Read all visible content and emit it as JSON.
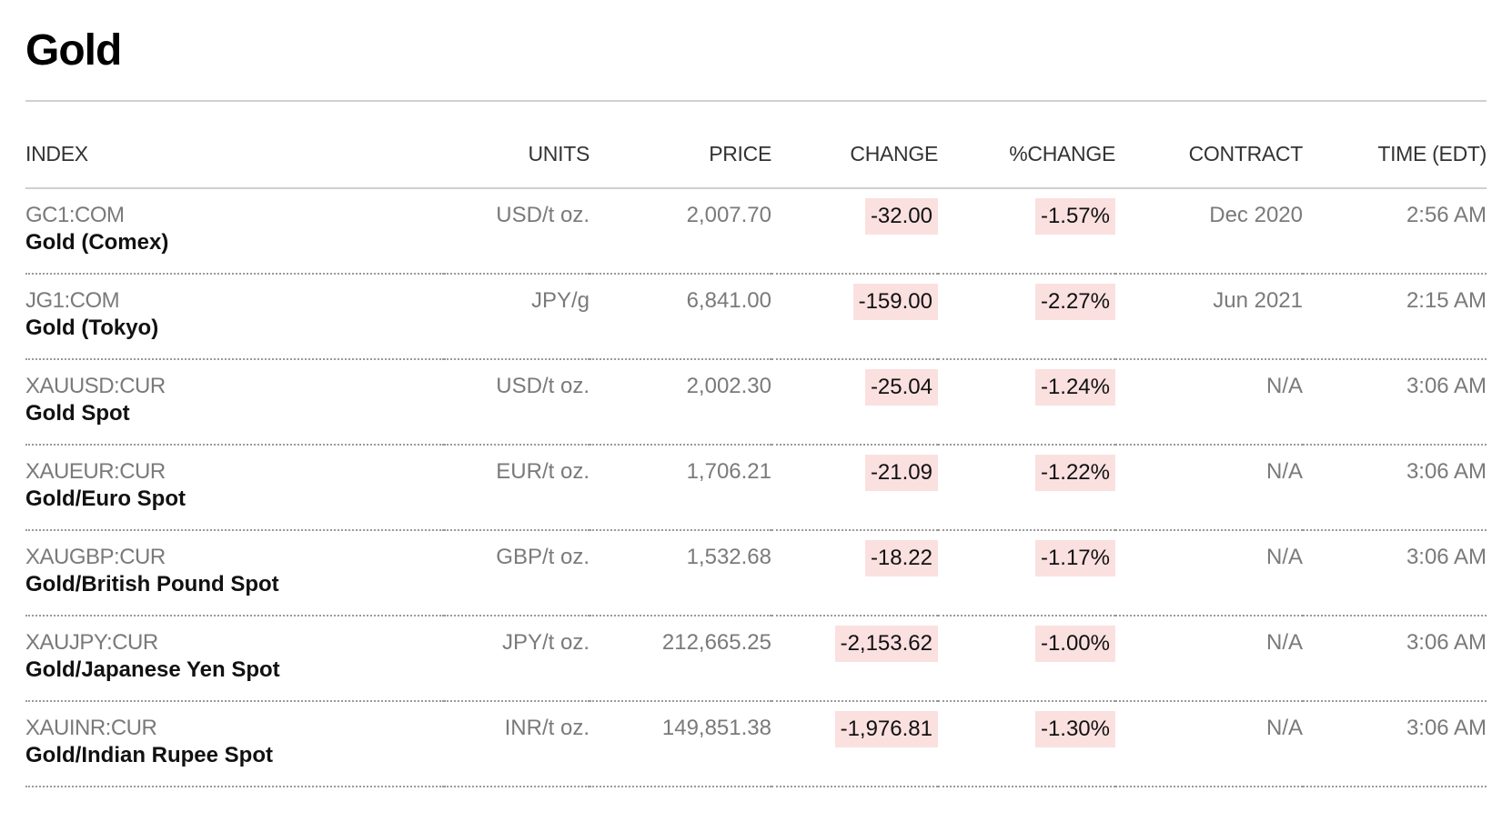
{
  "page": {
    "title": "Gold"
  },
  "table": {
    "headers": {
      "index": "INDEX",
      "units": "UNITS",
      "price": "PRICE",
      "change": "CHANGE",
      "pct_change": "%CHANGE",
      "contract": "CONTRACT",
      "time": "TIME (EDT)"
    },
    "rows": [
      {
        "ticker": "GC1:COM",
        "name": "Gold (Comex)",
        "units": "USD/t oz.",
        "price": "2,007.70",
        "change": "-32.00",
        "pct_change": "-1.57%",
        "contract": "Dec 2020",
        "time": "2:56 AM"
      },
      {
        "ticker": "JG1:COM",
        "name": "Gold (Tokyo)",
        "units": "JPY/g",
        "price": "6,841.00",
        "change": "-159.00",
        "pct_change": "-2.27%",
        "contract": "Jun 2021",
        "time": "2:15 AM"
      },
      {
        "ticker": "XAUUSD:CUR",
        "name": "Gold Spot",
        "units": "USD/t oz.",
        "price": "2,002.30",
        "change": "-25.04",
        "pct_change": "-1.24%",
        "contract": "N/A",
        "time": "3:06 AM"
      },
      {
        "ticker": "XAUEUR:CUR",
        "name": "Gold/Euro Spot",
        "units": "EUR/t oz.",
        "price": "1,706.21",
        "change": "-21.09",
        "pct_change": "-1.22%",
        "contract": "N/A",
        "time": "3:06 AM"
      },
      {
        "ticker": "XAUGBP:CUR",
        "name": "Gold/British Pound Spot",
        "units": "GBP/t oz.",
        "price": "1,532.68",
        "change": "-18.22",
        "pct_change": "-1.17%",
        "contract": "N/A",
        "time": "3:06 AM"
      },
      {
        "ticker": "XAUJPY:CUR",
        "name": "Gold/Japanese Yen Spot",
        "units": "JPY/t oz.",
        "price": "212,665.25",
        "change": "-2,153.62",
        "pct_change": "-1.00%",
        "contract": "N/A",
        "time": "3:06 AM"
      },
      {
        "ticker": "XAUINR:CUR",
        "name": "Gold/Indian Rupee Spot",
        "units": "INR/t oz.",
        "price": "149,851.38",
        "change": "-1,976.81",
        "pct_change": "-1.30%",
        "contract": "N/A",
        "time": "3:06 AM"
      }
    ]
  },
  "colors": {
    "negative_highlight": "#fbe0e0",
    "muted_text": "#7a7a7a",
    "divider": "#9a9a9a"
  }
}
